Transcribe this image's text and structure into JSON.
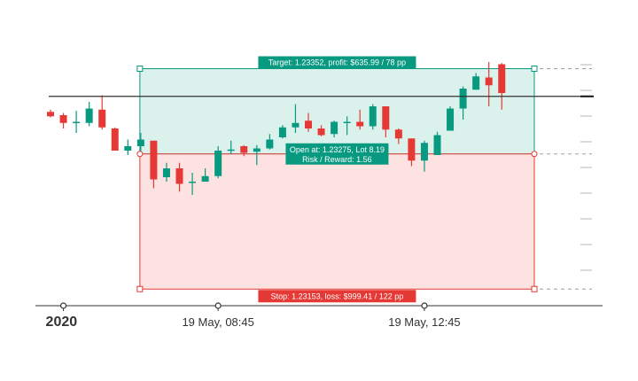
{
  "colors": {
    "up": "#089981",
    "down": "#e53935",
    "target_fill": "#dbf2ec",
    "stop_fill": "#fde2e2",
    "target_stroke": "#089981",
    "stop_stroke": "#e53935",
    "label_target_bg": "#089981",
    "label_stop_bg": "#e53935",
    "label_entry_bg": "#089981",
    "hline": "#333333"
  },
  "labels": {
    "target": "Target: 1.23352, profit: $635.99 / 78 pp",
    "entry_line1": "Open at: 1.23275, Lot 8.19",
    "entry_line2": "Risk / Reward: 1.56",
    "stop": "Stop: 1.23153, loss: $999.41 / 122 pp"
  },
  "chart_data": {
    "type": "candlestick",
    "y_range": [
      1.2315,
      1.2339
    ],
    "levels": {
      "target": 1.23352,
      "entry": 1.23275,
      "stop": 1.23153,
      "horizontal_line": 1.23327
    },
    "x_labels": [
      "2020",
      "19 May, 08:45",
      "19 May, 12:45"
    ],
    "x_label_candle_index": [
      1,
      13,
      29
    ],
    "position_start_index": 7,
    "position_end_index": 37,
    "candles": [
      {
        "o": 1.23313,
        "h": 1.23315,
        "l": 1.23308,
        "c": 1.23309
      },
      {
        "o": 1.2331,
        "h": 1.23312,
        "l": 1.23298,
        "c": 1.23303
      },
      {
        "o": 1.23304,
        "h": 1.23314,
        "l": 1.23294,
        "c": 1.23304
      },
      {
        "o": 1.23303,
        "h": 1.23322,
        "l": 1.233,
        "c": 1.23316
      },
      {
        "o": 1.23315,
        "h": 1.23328,
        "l": 1.23297,
        "c": 1.23299
      },
      {
        "o": 1.23298,
        "h": 1.23299,
        "l": 1.23278,
        "c": 1.23278
      },
      {
        "o": 1.23278,
        "h": 1.23288,
        "l": 1.23274,
        "c": 1.23282
      },
      {
        "o": 1.23282,
        "h": 1.23294,
        "l": 1.23277,
        "c": 1.23288
      },
      {
        "o": 1.23287,
        "h": 1.23287,
        "l": 1.23244,
        "c": 1.23252
      },
      {
        "o": 1.23254,
        "h": 1.23267,
        "l": 1.2325,
        "c": 1.23262
      },
      {
        "o": 1.23262,
        "h": 1.23267,
        "l": 1.23241,
        "c": 1.23248
      },
      {
        "o": 1.23249,
        "h": 1.23258,
        "l": 1.23238,
        "c": 1.2325
      },
      {
        "o": 1.2325,
        "h": 1.23262,
        "l": 1.2325,
        "c": 1.23255
      },
      {
        "o": 1.23255,
        "h": 1.23282,
        "l": 1.23253,
        "c": 1.23278
      },
      {
        "o": 1.23278,
        "h": 1.23287,
        "l": 1.23275,
        "c": 1.23279
      },
      {
        "o": 1.23282,
        "h": 1.23283,
        "l": 1.23273,
        "c": 1.23276
      },
      {
        "o": 1.23277,
        "h": 1.23283,
        "l": 1.23265,
        "c": 1.2328
      },
      {
        "o": 1.2328,
        "h": 1.23293,
        "l": 1.23279,
        "c": 1.23288
      },
      {
        "o": 1.2329,
        "h": 1.23301,
        "l": 1.23289,
        "c": 1.23299
      },
      {
        "o": 1.23299,
        "h": 1.2332,
        "l": 1.23294,
        "c": 1.23303
      },
      {
        "o": 1.23305,
        "h": 1.23312,
        "l": 1.23295,
        "c": 1.23298
      },
      {
        "o": 1.23298,
        "h": 1.23301,
        "l": 1.23291,
        "c": 1.23292
      },
      {
        "o": 1.23293,
        "h": 1.23305,
        "l": 1.2329,
        "c": 1.23304
      },
      {
        "o": 1.23304,
        "h": 1.23309,
        "l": 1.23292,
        "c": 1.23304
      },
      {
        "o": 1.23304,
        "h": 1.23315,
        "l": 1.23297,
        "c": 1.233
      },
      {
        "o": 1.233,
        "h": 1.2332,
        "l": 1.23297,
        "c": 1.23318
      },
      {
        "o": 1.23318,
        "h": 1.23318,
        "l": 1.2329,
        "c": 1.23297
      },
      {
        "o": 1.23297,
        "h": 1.23298,
        "l": 1.23284,
        "c": 1.23289
      },
      {
        "o": 1.23289,
        "h": 1.23289,
        "l": 1.23264,
        "c": 1.23269
      },
      {
        "o": 1.23269,
        "h": 1.23287,
        "l": 1.23259,
        "c": 1.23285
      },
      {
        "o": 1.23274,
        "h": 1.23295,
        "l": 1.23274,
        "c": 1.23292
      },
      {
        "o": 1.23296,
        "h": 1.23318,
        "l": 1.23296,
        "c": 1.23316
      },
      {
        "o": 1.23316,
        "h": 1.23336,
        "l": 1.23306,
        "c": 1.23334
      },
      {
        "o": 1.23333,
        "h": 1.23348,
        "l": 1.23333,
        "c": 1.23345
      },
      {
        "o": 1.23344,
        "h": 1.23358,
        "l": 1.23318,
        "c": 1.23337
      },
      {
        "o": 1.23356,
        "h": 1.23357,
        "l": 1.23315,
        "c": 1.2333
      }
    ]
  }
}
